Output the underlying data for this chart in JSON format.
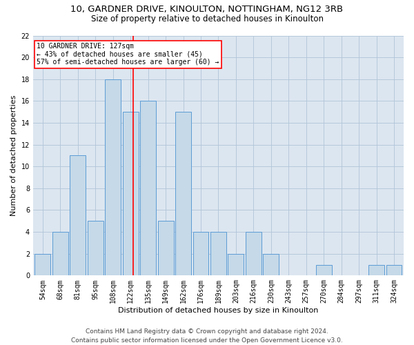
{
  "title1": "10, GARDNER DRIVE, KINOULTON, NOTTINGHAM, NG12 3RB",
  "title2": "Size of property relative to detached houses in Kinoulton",
  "xlabel": "Distribution of detached houses by size in Kinoulton",
  "ylabel": "Number of detached properties",
  "footer1": "Contains HM Land Registry data © Crown copyright and database right 2024.",
  "footer2": "Contains public sector information licensed under the Open Government Licence v3.0.",
  "categories": [
    "54sqm",
    "68sqm",
    "81sqm",
    "95sqm",
    "108sqm",
    "122sqm",
    "135sqm",
    "149sqm",
    "162sqm",
    "176sqm",
    "189sqm",
    "203sqm",
    "216sqm",
    "230sqm",
    "243sqm",
    "257sqm",
    "270sqm",
    "284sqm",
    "297sqm",
    "311sqm",
    "324sqm"
  ],
  "values": [
    2,
    4,
    11,
    5,
    18,
    15,
    16,
    5,
    15,
    4,
    4,
    2,
    4,
    2,
    0,
    0,
    1,
    0,
    0,
    1,
    1
  ],
  "bar_color": "#c5d9e8",
  "bar_edge_color": "#5b9bd5",
  "annotation_text": "10 GARDNER DRIVE: 127sqm\n← 43% of detached houses are smaller (45)\n57% of semi-detached houses are larger (60) →",
  "annotation_box_color": "white",
  "annotation_box_edge_color": "red",
  "vline_color": "red",
  "vline_x": 5.15,
  "ylim": [
    0,
    22
  ],
  "yticks": [
    0,
    2,
    4,
    6,
    8,
    10,
    12,
    14,
    16,
    18,
    20,
    22
  ],
  "grid_color": "#b0c4d8",
  "bg_color": "#dce6f0",
  "title1_fontsize": 9.5,
  "title2_fontsize": 8.5,
  "xlabel_fontsize": 8,
  "ylabel_fontsize": 8,
  "tick_fontsize": 7,
  "footer_fontsize": 6.5,
  "annotation_fontsize": 7
}
